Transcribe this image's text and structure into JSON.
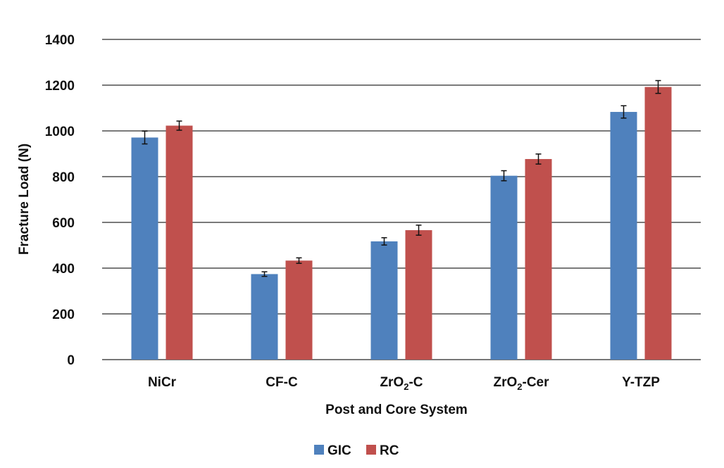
{
  "chart_data": {
    "type": "bar",
    "title": "",
    "xlabel": "Post and Core System",
    "ylabel": "Fracture Load (N)",
    "ylim": [
      0,
      1400
    ],
    "yticks": [
      0,
      200,
      400,
      600,
      800,
      1000,
      1200,
      1400
    ],
    "grid": true,
    "legend_position": "bottom",
    "categories": [
      {
        "label": "NiCr",
        "sub": "",
        "suffix": ""
      },
      {
        "label": "CF-C",
        "sub": "",
        "suffix": ""
      },
      {
        "label": "ZrO",
        "sub": "2",
        "suffix": "-C"
      },
      {
        "label": "ZrO",
        "sub": "2",
        "suffix": "-Cer"
      },
      {
        "label": "Y-TZP",
        "sub": "",
        "suffix": ""
      }
    ],
    "series": [
      {
        "name": "GIC",
        "color": "#4f81bd",
        "values": [
          971,
          374,
          517,
          804,
          1083
        ],
        "errors": [
          28,
          10,
          16,
          22,
          27
        ]
      },
      {
        "name": "RC",
        "color": "#c0504d",
        "values": [
          1023,
          433,
          566,
          877,
          1192
        ],
        "errors": [
          20,
          12,
          22,
          22,
          28
        ]
      }
    ]
  }
}
